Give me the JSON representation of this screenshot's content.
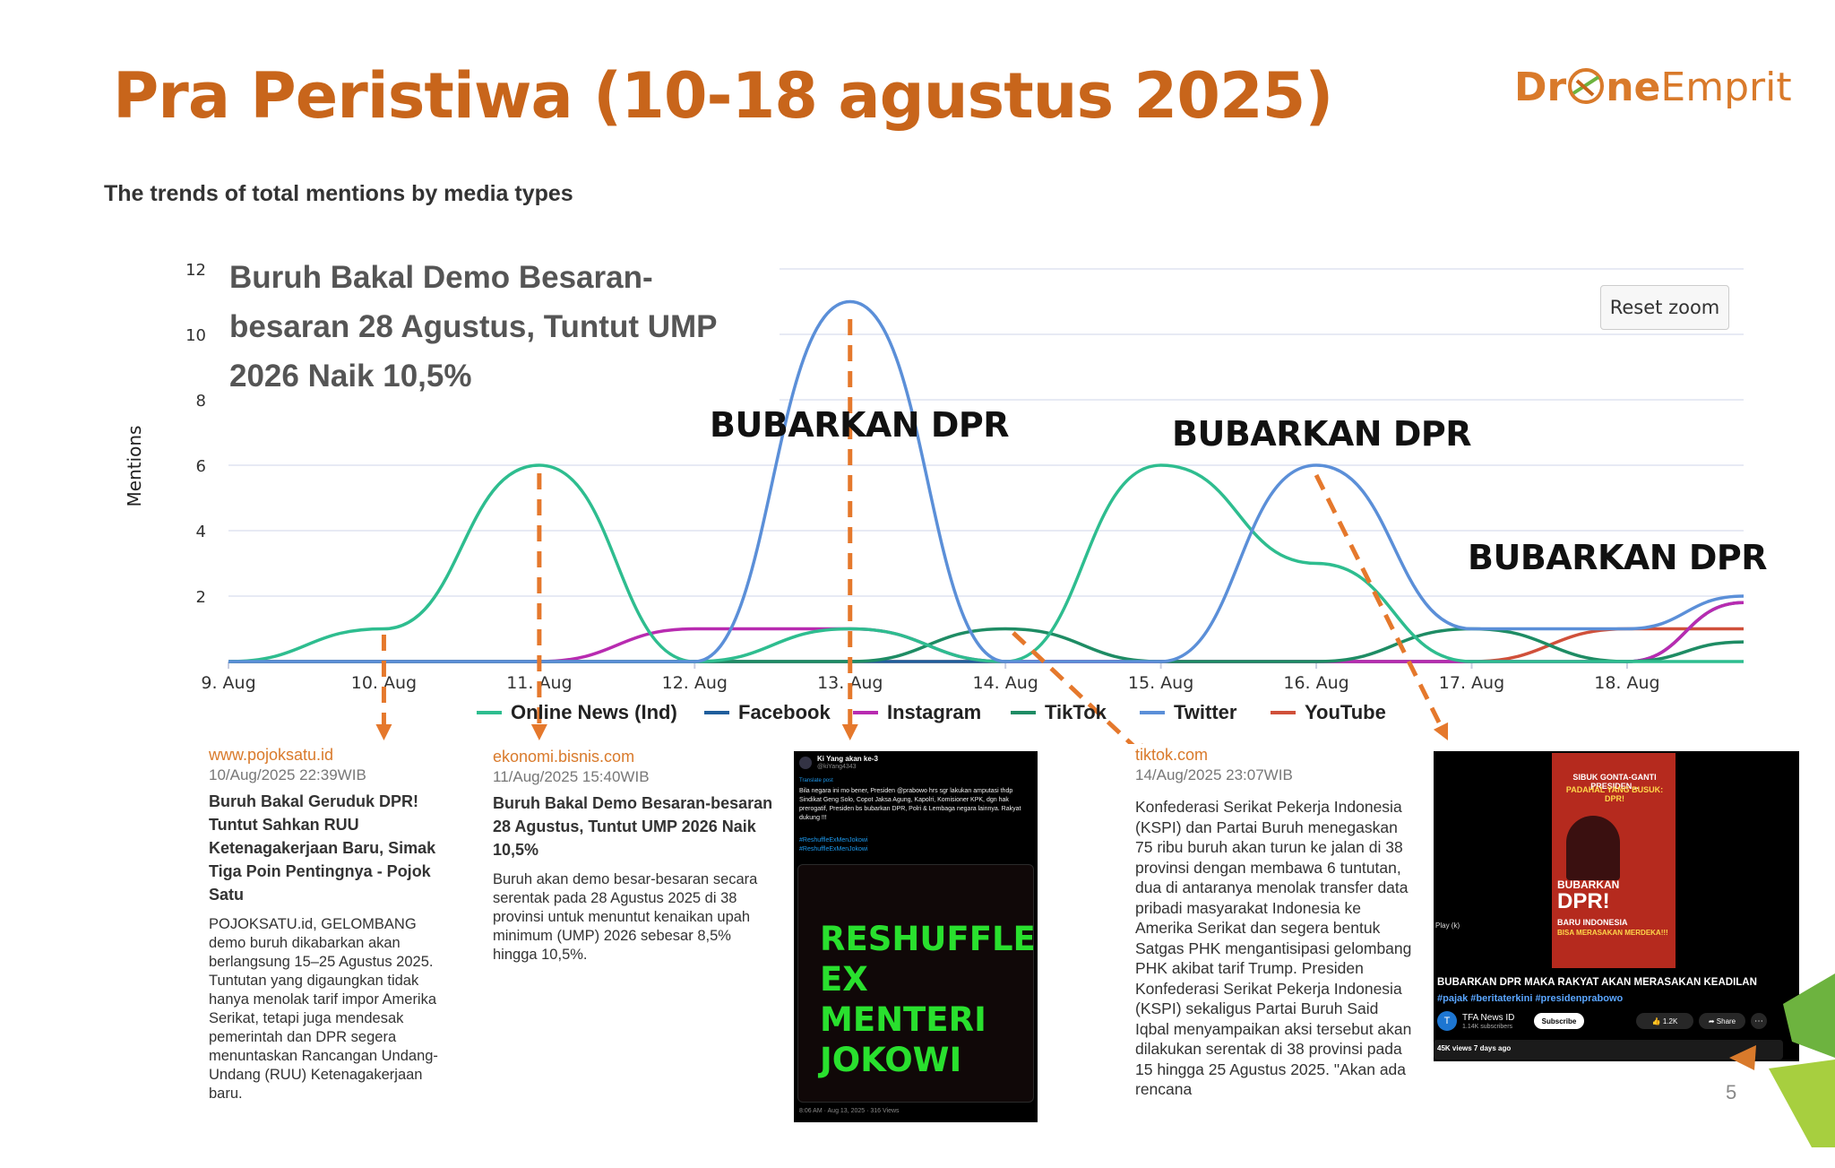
{
  "slide": {
    "title": "Pra Peristiwa (10-18 agustus 2025)",
    "logo_part1": "Dr",
    "logo_part2": "ne",
    "logo_part3": "Emprit",
    "page_number": "5"
  },
  "chart_data": {
    "type": "line",
    "title": "The trends of total mentions by media types",
    "ylabel": "Mentions",
    "xlabel": "",
    "ylim": [
      0,
      12
    ],
    "yticks": [
      2,
      4,
      6,
      8,
      10,
      12
    ],
    "xlim": [
      9,
      18.75
    ],
    "categories": [
      "9. Aug",
      "10. Aug",
      "11. Aug",
      "12. Aug",
      "13. Aug",
      "14. Aug",
      "15. Aug",
      "16. Aug",
      "17. Aug",
      "18. Aug"
    ],
    "x": [
      9,
      10,
      11,
      12,
      13,
      14,
      15,
      16,
      17,
      18,
      18.75
    ],
    "grid": true,
    "legend_position": "bottom",
    "series": [
      {
        "name": "Online News (Ind)",
        "color": "#2ebd8f",
        "values": [
          0,
          1,
          6,
          0,
          1,
          0,
          6,
          3,
          0,
          0,
          0
        ]
      },
      {
        "name": "Facebook",
        "color": "#1f5e9c",
        "values": [
          0,
          0,
          0,
          0,
          0,
          0,
          0,
          0,
          0,
          0,
          1.8
        ]
      },
      {
        "name": "Instagram",
        "color": "#b82bb0",
        "values": [
          0,
          0,
          0,
          1,
          1,
          0,
          0,
          0,
          0,
          0,
          1.8
        ]
      },
      {
        "name": "TikTok",
        "color": "#1e8c64",
        "values": [
          0,
          0,
          0,
          0,
          0,
          1,
          0,
          0,
          1,
          0,
          0.6
        ]
      },
      {
        "name": "Twitter",
        "color": "#5b8fd8",
        "values": [
          0,
          0,
          0,
          0,
          11,
          0,
          0,
          6,
          1,
          1,
          2
        ]
      },
      {
        "name": "YouTube",
        "color": "#d0503a",
        "values": [
          0,
          0,
          0,
          0,
          0,
          0,
          0,
          0,
          0,
          1,
          1
        ]
      }
    ],
    "reset_zoom_label": "Reset zoom"
  },
  "annotations": {
    "headline": "Buruh Bakal Demo Besaran-besaran 28 Agustus, Tuntut UMP 2026 Naik 10,5%",
    "headline_line1": "Buruh Bakal Demo Besaran-",
    "headline_line2": "besaran 28 Agustus, Tuntut UMP",
    "headline_line3": "2026 Naik 10,5%",
    "bubarkan_1": "BUBARKAN DPR",
    "bubarkan_2": "BUBARKAN DPR",
    "bubarkan_3": "BUBARKAN DPR"
  },
  "cards": [
    {
      "source": "www.pojoksatu.id",
      "date": "10/Aug/2025 22:39WIB",
      "title": "Buruh Bakal Geruduk DPR! Tuntut Sahkan RUU Ketenagakerjaan Baru, Simak Tiga Poin Pentingnya - Pojok Satu",
      "body": "POJOKSATU.id, GELOMBANG demo buruh dikabarkan akan berlangsung 15–25 Agustus 2025. Tuntutan yang digaungkan tidak hanya menolak tarif impor Amerika Serikat, tetapi juga mendesak pemerintah dan DPR segera menuntaskan Rancangan Undang-Undang (RUU) Ketenagakerjaan baru."
    },
    {
      "source": "ekonomi.bisnis.com",
      "date": "11/Aug/2025 15:40WIB",
      "title": "Buruh Bakal Demo Besaran-besaran 28 Agustus, Tuntut UMP 2026 Naik 10,5%",
      "body": "Buruh akan demo besar-besaran secara serentak pada 28 Agustus 2025 di 38 provinsi untuk menuntut kenaikan upah minimum (UMP) 2026 sebesar 8,5% hingga 10,5%."
    },
    {
      "source": "tiktok.com",
      "date": "14/Aug/2025 23:07WIB",
      "title": "",
      "body": "Konfederasi Serikat Pekerja Indonesia (KSPI) dan Partai Buruh menegaskan 75 ribu buruh akan turun ke jalan di 38 provinsi dengan membawa 6 tuntutan, dua di antaranya menolak transfer data pribadi masyarakat Indonesia ke Amerika Serikat dan segera bentuk Satgas PHK mengantisipasi gelombang PHK akibat tarif Trump. Presiden Konfederasi Serikat Pekerja Indonesia (KSPI) sekaligus Partai Buruh Said Iqbal menyampaikan aksi tersebut akan dilakukan serentak di 38 provinsi pada 15 hingga 25 Agustus 2025. \"Akan ada rencana"
    }
  ],
  "tweet": {
    "user": "Ki Yang akan ke-3",
    "handle": "@kiYang4343",
    "translate": "Translate post",
    "text": "Bila negara ini mo bener, Presiden @prabowo hrs sgr lakukan amputasi thdp Sindikat Geng Solo, Copot Jaksa Agung, Kapolri, Komisioner KPK, dgn hak prerogatif, Presiden bs bubarkan DPR, Polri & Lembaga negara lainnya. Rakyat dukung !!!",
    "hashtag1": "#ReshuffleExMenJokowi",
    "hashtag2": "#ReshuffleExMenJokowi",
    "image_text": "RESHUFFLE EX MENTERI JOKOWI",
    "footer": "8:06 AM · Aug 13, 2025 · 316 Views"
  },
  "youtube": {
    "poster_line1": "SIBUK GONTA-GANTI PRESIDEN...",
    "poster_line2": "PADAHAL YANG BUSUK: DPR!",
    "poster_line3": "BUBARKAN",
    "poster_line4": "DPR!",
    "poster_line5": "BARU INDONESIA",
    "poster_line6": "BISA MERASAKAN MERDEKA!!!",
    "play_hint": "Play (k)",
    "title": "BUBARKAN DPR MAKA RAKYAT AKAN MERASAKAN KEADILAN",
    "hashtags": "#pajak #beritaterkini #presidenprabowo",
    "channel": "TFA News ID",
    "subscribers": "1.14K subscribers",
    "subscribe": "Subscribe",
    "likes": "1.2K",
    "share": "Share",
    "meta": "45K views  7 days ago"
  }
}
